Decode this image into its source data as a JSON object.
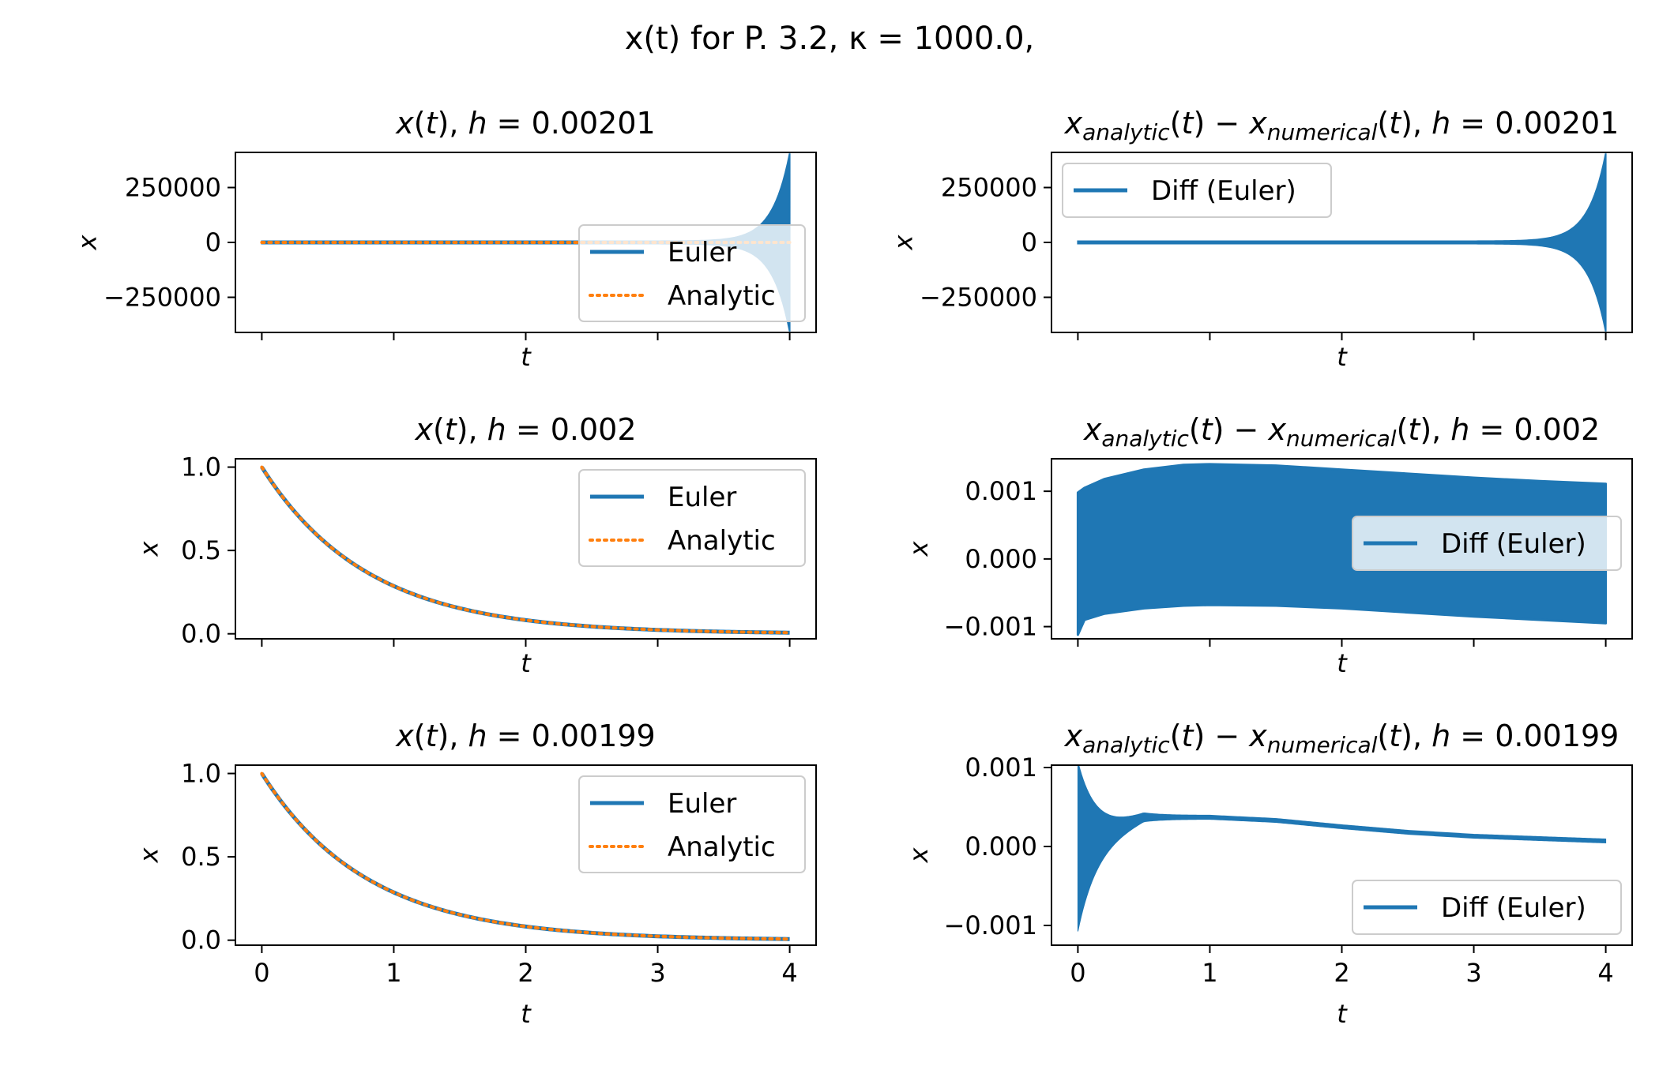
{
  "figure": {
    "title": "x(t) for P. 3.2, κ = 1000.0,",
    "colors": {
      "euler": "#1f77b4",
      "analytic": "#ff7f0e"
    }
  },
  "chart_data": [
    {
      "type": "line",
      "title": "x(t), h = 0.00201",
      "xlabel": "t",
      "ylabel": "x",
      "xlim": [
        -0.2,
        4.2
      ],
      "ylim": [
        -410000,
        410000
      ],
      "xticks": [
        0,
        1,
        2,
        3,
        4
      ],
      "xticklabels": [],
      "yticks": [
        -250000,
        0,
        250000
      ],
      "yticklabels": [
        "−250000",
        "0",
        "250000"
      ],
      "legend": {
        "position": "lower-right",
        "entries": [
          "Euler",
          "Analytic"
        ]
      },
      "series": [
        {
          "name": "Euler",
          "style": "solid",
          "kind": "growing-oscillation",
          "t_range": [
            0,
            4
          ],
          "envelope": {
            "start": 1,
            "end": 400000,
            "rate": 7.6
          }
        },
        {
          "name": "Analytic",
          "style": "dotted",
          "kind": "decay",
          "t_range": [
            0,
            4
          ],
          "x0": 1,
          "tau": 0.8
        }
      ]
    },
    {
      "type": "line",
      "title": "x_analytic(t) − x_numerical(t), h = 0.00201",
      "xlabel": "t",
      "ylabel": "x",
      "xlim": [
        -0.2,
        4.2
      ],
      "ylim": [
        -410000,
        410000
      ],
      "xticks": [
        0,
        1,
        2,
        3,
        4
      ],
      "xticklabels": [],
      "yticks": [
        -250000,
        0,
        250000
      ],
      "yticklabels": [
        "−250000",
        "0",
        "250000"
      ],
      "legend": {
        "position": "upper-left",
        "entries": [
          "Diff (Euler)"
        ]
      },
      "series": [
        {
          "name": "Diff (Euler)",
          "style": "solid",
          "kind": "growing-oscillation",
          "t_range": [
            0,
            4
          ],
          "envelope": {
            "start": 1,
            "end": 400000,
            "rate": 7.6
          }
        }
      ]
    },
    {
      "type": "line",
      "title": "x(t), h = 0.002",
      "xlabel": "t",
      "ylabel": "x",
      "xlim": [
        -0.2,
        4.2
      ],
      "ylim": [
        -0.03,
        1.05
      ],
      "xticks": [
        0,
        1,
        2,
        3,
        4
      ],
      "xticklabels": [],
      "yticks": [
        0.0,
        0.5,
        1.0
      ],
      "yticklabels": [
        "0.0",
        "0.5",
        "1.0"
      ],
      "legend": {
        "position": "upper-right",
        "entries": [
          "Euler",
          "Analytic"
        ]
      },
      "series": [
        {
          "name": "Euler",
          "style": "solid",
          "kind": "decay",
          "t_range": [
            0,
            4
          ],
          "x0": 1,
          "tau": 0.8
        },
        {
          "name": "Analytic",
          "style": "dotted",
          "kind": "decay",
          "t_range": [
            0,
            4
          ],
          "x0": 1,
          "tau": 0.8
        }
      ]
    },
    {
      "type": "line",
      "title": "x_analytic(t) − x_numerical(t), h = 0.002",
      "xlabel": "t",
      "ylabel": "x",
      "xlim": [
        -0.2,
        4.2
      ],
      "ylim": [
        -0.00118,
        0.00148
      ],
      "xticks": [
        0,
        1,
        2,
        3,
        4
      ],
      "xticklabels": [],
      "yticks": [
        -0.001,
        0.0,
        0.001
      ],
      "yticklabels": [
        "−0.001",
        "0.000",
        "0.001"
      ],
      "legend": {
        "position": "center-right",
        "entries": [
          "Diff (Euler)"
        ]
      },
      "series": [
        {
          "name": "Diff (Euler)",
          "style": "solid",
          "kind": "filled-band",
          "t": [
            0,
            0.05,
            0.2,
            0.5,
            0.8,
            1.0,
            1.5,
            2.0,
            2.5,
            3.0,
            3.5,
            4.0
          ],
          "upper": [
            0.00098,
            0.00105,
            0.00118,
            0.00132,
            0.00139,
            0.0014,
            0.00138,
            0.00132,
            0.00126,
            0.0012,
            0.00115,
            0.00111
          ],
          "lower": [
            -0.00112,
            -0.0009,
            -0.00081,
            -0.00073,
            -0.00069,
            -0.00068,
            -0.00069,
            -0.00073,
            -0.00079,
            -0.00085,
            -0.0009,
            -0.00095
          ]
        }
      ]
    },
    {
      "type": "line",
      "title": "x(t), h = 0.00199",
      "xlabel": "t",
      "ylabel": "x",
      "xlim": [
        -0.2,
        4.2
      ],
      "ylim": [
        -0.03,
        1.05
      ],
      "xticks": [
        0,
        1,
        2,
        3,
        4
      ],
      "xticklabels": [
        "0",
        "1",
        "2",
        "3",
        "4"
      ],
      "yticks": [
        0.0,
        0.5,
        1.0
      ],
      "yticklabels": [
        "0.0",
        "0.5",
        "1.0"
      ],
      "legend": {
        "position": "upper-right",
        "entries": [
          "Euler",
          "Analytic"
        ]
      },
      "series": [
        {
          "name": "Euler",
          "style": "solid",
          "kind": "decay",
          "t_range": [
            0,
            4
          ],
          "x0": 1,
          "tau": 0.8
        },
        {
          "name": "Analytic",
          "style": "dotted",
          "kind": "decay",
          "t_range": [
            0,
            4
          ],
          "x0": 1,
          "tau": 0.8
        }
      ]
    },
    {
      "type": "line",
      "title": "x_analytic(t) − x_numerical(t), h = 0.00199",
      "xlabel": "t",
      "ylabel": "x",
      "xlim": [
        -0.2,
        4.2
      ],
      "ylim": [
        -0.00125,
        0.00103
      ],
      "xticks": [
        0,
        1,
        2,
        3,
        4
      ],
      "xticklabels": [
        "0",
        "1",
        "2",
        "3",
        "4"
      ],
      "yticks": [
        -0.001,
        0.0,
        0.001
      ],
      "yticklabels": [
        "−0.001",
        "0.000",
        "0.001"
      ],
      "legend": {
        "position": "lower-right",
        "entries": [
          "Diff (Euler)"
        ]
      },
      "series": [
        {
          "name": "Diff (Euler)",
          "style": "solid",
          "kind": "decaying-oscillation",
          "t": [
            0,
            0.5,
            1.0,
            1.5,
            2.0,
            2.5,
            3.0,
            3.5,
            4.0
          ],
          "center": [
            0.0,
            0.00037,
            0.00037,
            0.00033,
            0.00025,
            0.00018,
            0.00013,
            0.0001,
            7e-05
          ],
          "amp0": 0.00105,
          "amp_decay": 7.0
        }
      ]
    }
  ]
}
